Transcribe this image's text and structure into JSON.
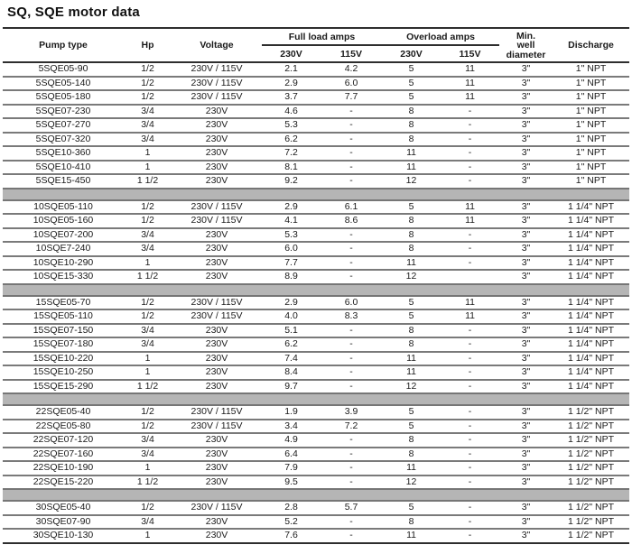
{
  "page": {
    "title": "SQ, SQE motor data"
  },
  "colors": {
    "separator_band": "#b5b5b5",
    "row_line": "#7a7a7a",
    "heavy_line": "#2e2e2e",
    "text": "#1a1a1a",
    "background": "#ffffff"
  },
  "table": {
    "headers": {
      "pump_type": "Pump type",
      "hp": "Hp",
      "voltage": "Voltage",
      "full_load_amps": "Full load amps",
      "overload_amps": "Overload amps",
      "volt_230": "230V",
      "volt_115": "115V",
      "min_well_diameter": [
        "Min.",
        "well",
        "diameter"
      ],
      "discharge": "Discharge"
    },
    "groups": [
      {
        "rows": [
          [
            "5SQE05-90",
            "1/2",
            "230V / 115V",
            "2.1",
            "4.2",
            "5",
            "11",
            "3\"",
            "1\" NPT"
          ],
          [
            "5SQE05-140",
            "1/2",
            "230V / 115V",
            "2.9",
            "6.0",
            "5",
            "11",
            "3\"",
            "1\" NPT"
          ],
          [
            "5SQE05-180",
            "1/2",
            "230V / 115V",
            "3.7",
            "7.7",
            "5",
            "11",
            "3\"",
            "1\" NPT"
          ],
          [
            "5SQE07-230",
            "3/4",
            "230V",
            "4.6",
            "-",
            "8",
            "-",
            "3\"",
            "1\" NPT"
          ],
          [
            "5SQE07-270",
            "3/4",
            "230V",
            "5.3",
            "-",
            "8",
            "-",
            "3\"",
            "1\" NPT"
          ],
          [
            "5SQE07-320",
            "3/4",
            "230V",
            "6.2",
            "-",
            "8",
            "-",
            "3\"",
            "1\" NPT"
          ],
          [
            "5SQE10-360",
            "1",
            "230V",
            "7.2",
            "-",
            "11",
            "-",
            "3\"",
            "1\" NPT"
          ],
          [
            "5SQE10-410",
            "1",
            "230V",
            "8.1",
            "-",
            "11",
            "-",
            "3\"",
            "1\" NPT"
          ],
          [
            "5SQE15-450",
            "1 1/2",
            "230V",
            "9.2",
            "-",
            "12",
            "-",
            "3\"",
            "1\" NPT"
          ]
        ]
      },
      {
        "rows": [
          [
            "10SQE05-110",
            "1/2",
            "230V / 115V",
            "2.9",
            "6.1",
            "5",
            "11",
            "3\"",
            "1 1/4\" NPT"
          ],
          [
            "10SQE05-160",
            "1/2",
            "230V / 115V",
            "4.1",
            "8.6",
            "8",
            "11",
            "3\"",
            "1 1/4\" NPT"
          ],
          [
            "10SQE07-200",
            "3/4",
            "230V",
            "5.3",
            "-",
            "8",
            "-",
            "3\"",
            "1 1/4\" NPT"
          ],
          [
            "10SQE7-240",
            "3/4",
            "230V",
            "6.0",
            "-",
            "8",
            "-",
            "3\"",
            "1 1/4\" NPT"
          ],
          [
            "10SQE10-290",
            "1",
            "230V",
            "7.7",
            "-",
            "11",
            "-",
            "3\"",
            "1 1/4\" NPT"
          ],
          [
            "10SQE15-330",
            "1 1/2",
            "230V",
            "8.9",
            "-",
            "12",
            "",
            "3\"",
            "1 1/4\" NPT"
          ]
        ]
      },
      {
        "rows": [
          [
            "15SQE05-70",
            "1/2",
            "230V / 115V",
            "2.9",
            "6.0",
            "5",
            "11",
            "3\"",
            "1 1/4\" NPT"
          ],
          [
            "15SQE05-110",
            "1/2",
            "230V / 115V",
            "4.0",
            "8.3",
            "5",
            "11",
            "3\"",
            "1 1/4\" NPT"
          ],
          [
            "15SQE07-150",
            "3/4",
            "230V",
            "5.1",
            "-",
            "8",
            "-",
            "3\"",
            "1 1/4\" NPT"
          ],
          [
            "15SQE07-180",
            "3/4",
            "230V",
            "6.2",
            "-",
            "8",
            "-",
            "3\"",
            "1 1/4\" NPT"
          ],
          [
            "15SQE10-220",
            "1",
            "230V",
            "7.4",
            "-",
            "11",
            "-",
            "3\"",
            "1 1/4\" NPT"
          ],
          [
            "15SQE10-250",
            "1",
            "230V",
            "8.4",
            "-",
            "11",
            "-",
            "3\"",
            "1 1/4\" NPT"
          ],
          [
            "15SQE15-290",
            "1 1/2",
            "230V",
            "9.7",
            "-",
            "12",
            "-",
            "3\"",
            "1 1/4\" NPT"
          ]
        ]
      },
      {
        "rows": [
          [
            "22SQE05-40",
            "1/2",
            "230V / 115V",
            "1.9",
            "3.9",
            "5",
            "-",
            "3\"",
            "1 1/2\" NPT"
          ],
          [
            "22SQE05-80",
            "1/2",
            "230V / 115V",
            "3.4",
            "7.2",
            "5",
            "-",
            "3\"",
            "1 1/2\" NPT"
          ],
          [
            "22SQE07-120",
            "3/4",
            "230V",
            "4.9",
            "-",
            "8",
            "-",
            "3\"",
            "1 1/2\" NPT"
          ],
          [
            "22SQE07-160",
            "3/4",
            "230V",
            "6.4",
            "-",
            "8",
            "-",
            "3\"",
            "1 1/2\" NPT"
          ],
          [
            "22SQE10-190",
            "1",
            "230V",
            "7.9",
            "-",
            "11",
            "-",
            "3\"",
            "1 1/2\" NPT"
          ],
          [
            "22SQE15-220",
            "1 1/2",
            "230V",
            "9.5",
            "-",
            "12",
            "-",
            "3\"",
            "1 1/2\" NPT"
          ]
        ]
      },
      {
        "rows": [
          [
            "30SQE05-40",
            "1/2",
            "230V / 115V",
            "2.8",
            "5.7",
            "5",
            "-",
            "3\"",
            "1 1/2\" NPT"
          ],
          [
            "30SQE07-90",
            "3/4",
            "230V",
            "5.2",
            "-",
            "8",
            "-",
            "3\"",
            "1 1/2\" NPT"
          ],
          [
            "30SQE10-130",
            "1",
            "230V",
            "7.6",
            "-",
            "11",
            "-",
            "3\"",
            "1 1/2\" NPT"
          ]
        ]
      }
    ]
  }
}
